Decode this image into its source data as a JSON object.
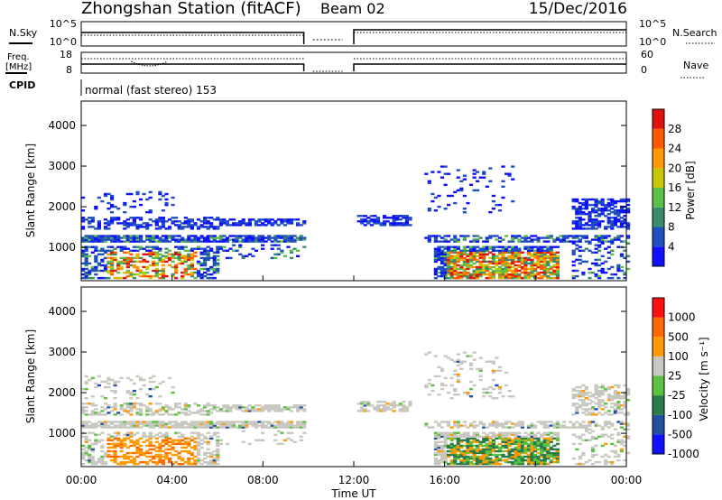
{
  "header": {
    "title": "Zhongshan Station (fitACF)",
    "beam": "Beam 02",
    "date": "15/Dec/2016"
  },
  "params": {
    "nsky_label": "N.Sky",
    "nsearch_label": "N.Search",
    "freq_label_1": "Freq.",
    "freq_label_2": "[MHz]",
    "nave_label": "Nave",
    "cpid_label": "CPID",
    "noise_ticks_left": [
      "10^5",
      "10^0"
    ],
    "noise_ticks_right": [
      "10^5",
      "10^0"
    ],
    "freq_ticks": [
      "18",
      "8"
    ],
    "nave_ticks": [
      "60",
      "0"
    ],
    "cpid_text": "normal (fast stereo) 153"
  },
  "chart_data": [
    {
      "type": "heatmap",
      "panel": "power",
      "ylabel": "Slant Range [km]",
      "ylim": [
        180,
        4600
      ],
      "yticks": [
        "1000",
        "2000",
        "3000",
        "4000"
      ],
      "colorbar_label": "Power [dB]",
      "colorbar_ticks": [
        "4",
        "8",
        "12",
        "16",
        "20",
        "24",
        "28"
      ],
      "colors": [
        "#1010ff",
        "#2050c0",
        "#3a8c6a",
        "#5cbf4a",
        "#c8c800",
        "#ff9a00",
        "#ff5a00",
        "#e01010"
      ],
      "data_gap_hours": [
        9.8,
        12.0
      ]
    },
    {
      "type": "heatmap",
      "panel": "velocity",
      "ylabel": "Slant Range [km]",
      "ylim": [
        180,
        4600
      ],
      "yticks": [
        "1000",
        "2000",
        "3000",
        "4000"
      ],
      "colorbar_label": "Velocity [m s⁻¹]",
      "colorbar_ticks": [
        "1000",
        "500",
        "100",
        "25",
        "-25",
        "-100",
        "-500",
        "-1000"
      ],
      "colors": [
        "#1010ff",
        "#2050a0",
        "#2a7a4a",
        "#5cc040",
        "#c8c8c0",
        "#ff9a00",
        "#ff6a00",
        "#ff1010"
      ],
      "data_gap_hours": [
        9.8,
        12.0
      ]
    }
  ],
  "xaxis": {
    "label": "Time UT",
    "ticks": [
      "00:00",
      "04:00",
      "08:00",
      "12:00",
      "16:00",
      "20:00",
      "00:00"
    ]
  }
}
